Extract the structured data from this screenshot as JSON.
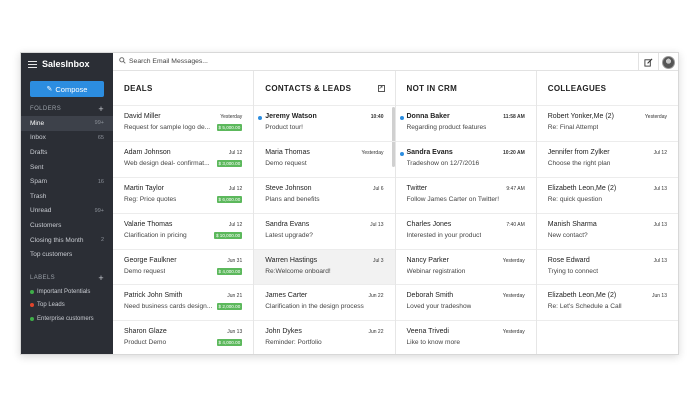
{
  "app": {
    "brand": "SalesInbox",
    "compose_label": "Compose",
    "search_placeholder": "Search Email Messages..."
  },
  "sidebar": {
    "folders_title": "FOLDERS",
    "folders": [
      {
        "label": "Mine",
        "count": "99+"
      },
      {
        "label": "Inbox",
        "count": "65"
      },
      {
        "label": "Drafts",
        "count": ""
      },
      {
        "label": "Sent",
        "count": ""
      },
      {
        "label": "Spam",
        "count": "16"
      },
      {
        "label": "Trash",
        "count": ""
      },
      {
        "label": "Unread",
        "count": "99+"
      },
      {
        "label": "Customers",
        "count": ""
      },
      {
        "label": "Closing this Month",
        "count": "2"
      },
      {
        "label": "Top customers",
        "count": ""
      }
    ],
    "labels_title": "LABELS",
    "labels": [
      {
        "label": "Important Potentials",
        "color": "#3fae49"
      },
      {
        "label": "Top Leads",
        "color": "#e0452c"
      },
      {
        "label": "Enterprise customers",
        "color": "#3fae49"
      }
    ]
  },
  "columns": [
    {
      "title": "DEALS",
      "items": [
        {
          "name": "David Miller",
          "time": "Yesterday",
          "subject": "Request for sample logo de...",
          "amount": "$ 5,000.00"
        },
        {
          "name": "Adam Johnson",
          "time": "Jul 12",
          "subject": "Web design deal- confirmat...",
          "amount": "$ 3,000.00"
        },
        {
          "name": "Martin Taylor",
          "time": "Jul 12",
          "subject": "Reg: Price quotes",
          "amount": "$ 6,000.00"
        },
        {
          "name": "Valarie Thomas",
          "time": "Jul 12",
          "subject": "Clarification in pricing",
          "amount": "$ 10,000.00"
        },
        {
          "name": "George Faulkner",
          "time": "Jun 31",
          "subject": "Demo request",
          "amount": "$ 4,000.00"
        },
        {
          "name": "Patrick John Smith",
          "time": "Jun 21",
          "subject": "Need business cards design...",
          "amount": "$ 2,000.00"
        },
        {
          "name": "Sharon Glaze",
          "time": "Jun 13",
          "subject": "Product Demo",
          "amount": "$ 4,000.00"
        }
      ]
    },
    {
      "title": "CONTACTS & LEADS",
      "items": [
        {
          "name": "Jeremy Watson",
          "time": "10:40",
          "subject": "Product tour!",
          "unread": true
        },
        {
          "name": "Maria Thomas",
          "time": "Yesterday",
          "subject": "Demo request"
        },
        {
          "name": "Steve Johnson",
          "time": "Jul 6",
          "subject": "Plans and benefits"
        },
        {
          "name": "Sandra Evans",
          "time": "Jul 13",
          "subject": "Latest upgrade?"
        },
        {
          "name": "Warren Hastings",
          "time": "Jul 3",
          "subject": "Re:Welcome onboard!",
          "highlight": true
        },
        {
          "name": "James Carter",
          "time": "Jun 22",
          "subject": "Clarification in the design process"
        },
        {
          "name": "John Dykes",
          "time": "Jun 22",
          "subject": "Reminder: Portfolio"
        }
      ]
    },
    {
      "title": "NOT IN CRM",
      "items": [
        {
          "name": "Donna Baker",
          "time": "11:58 AM",
          "subject": "Regarding product features",
          "unread": true
        },
        {
          "name": "Sandra Evans",
          "time": "10:20 AM",
          "subject": "Tradeshow on 12/7/2016",
          "unread": true
        },
        {
          "name": "Twitter",
          "time": "9:47 AM",
          "subject": "Follow James Carter on Twitter!"
        },
        {
          "name": "Charles Jones",
          "time": "7:40 AM",
          "subject": "Interested in your product"
        },
        {
          "name": "Nancy Parker",
          "time": "Yesterday",
          "subject": "Webinar registration"
        },
        {
          "name": "Deborah Smith",
          "time": "Yesterday",
          "subject": "Loved your tradeshow"
        },
        {
          "name": "Veena Trivedi",
          "time": "Yesterday",
          "subject": "Like to know more"
        }
      ]
    },
    {
      "title": "COLLEAGUES",
      "items": [
        {
          "name": "Robert Yonker,Me (2)",
          "time": "Yesterday",
          "subject": "Re: Final Attempt"
        },
        {
          "name": "Jennifer from Zylker",
          "time": "Jul 12",
          "subject": "Choose the right plan"
        },
        {
          "name": "Elizabeth Leon,Me (2)",
          "time": "Jul 13",
          "subject": "Re: quick question"
        },
        {
          "name": "Manish Sharma",
          "time": "Jul 13",
          "subject": "New contact?"
        },
        {
          "name": "Rose Edward",
          "time": "Jul 13",
          "subject": "Trying to connect"
        },
        {
          "name": "Elizabeth Leon,Me (2)",
          "time": "Jun 13",
          "subject": "Re: Let's Schedule a Call"
        }
      ]
    }
  ]
}
